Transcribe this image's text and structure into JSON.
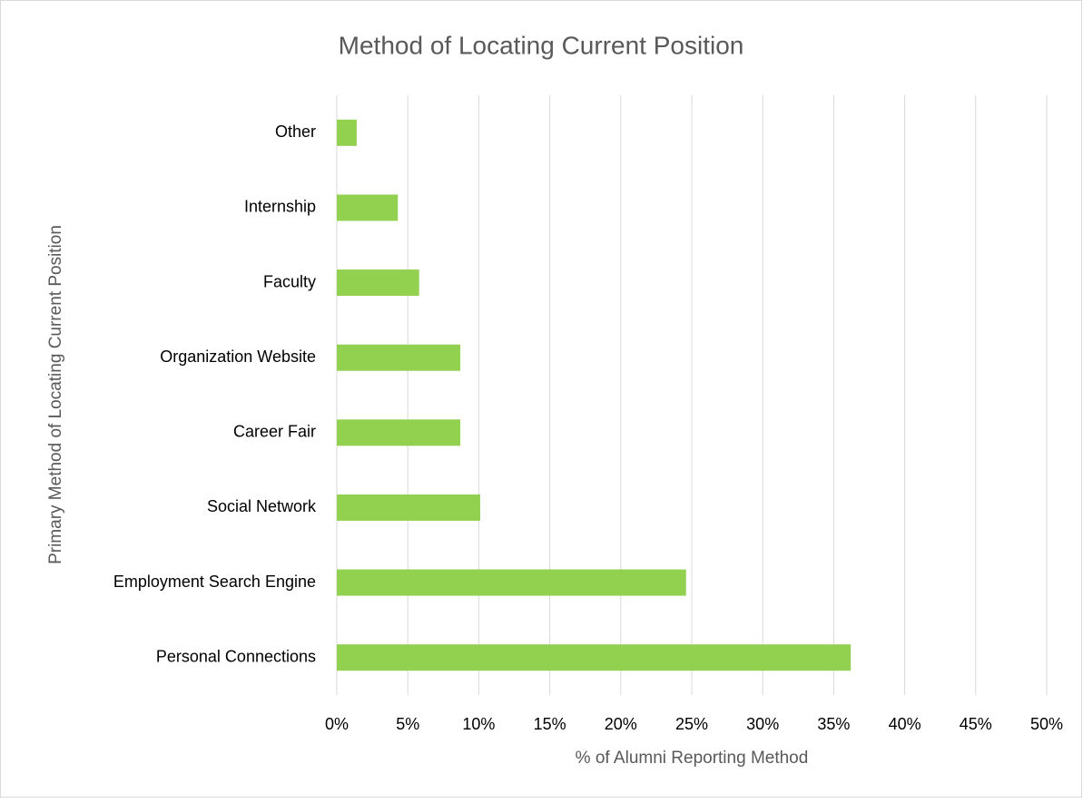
{
  "chart_data": {
    "type": "barh",
    "title": "Method of Locating Current Position",
    "xlabel": "% of Alumni Reporting Method",
    "ylabel": "Primary Method of Locating Current Position",
    "categories": [
      "Other",
      "Internship",
      "Faculty",
      "Organization Website",
      "Career Fair",
      "Social Network",
      "Employment Search Engine",
      "Personal Connections"
    ],
    "values": [
      1.4,
      4.3,
      5.8,
      8.7,
      8.7,
      10.1,
      24.6,
      36.2
    ],
    "color": "#92d050",
    "xlim": [
      0,
      50
    ],
    "xticks": [
      {
        "value": 0,
        "label": "0%"
      },
      {
        "value": 5,
        "label": "5%"
      },
      {
        "value": 10,
        "label": "10%"
      },
      {
        "value": 15,
        "label": "15%"
      },
      {
        "value": 20,
        "label": "20%"
      },
      {
        "value": 25,
        "label": "25%"
      },
      {
        "value": 30,
        "label": "30%"
      },
      {
        "value": 35,
        "label": "35%"
      },
      {
        "value": 40,
        "label": "40%"
      },
      {
        "value": 45,
        "label": "45%"
      },
      {
        "value": 50,
        "label": "50%"
      }
    ],
    "grid": true
  }
}
